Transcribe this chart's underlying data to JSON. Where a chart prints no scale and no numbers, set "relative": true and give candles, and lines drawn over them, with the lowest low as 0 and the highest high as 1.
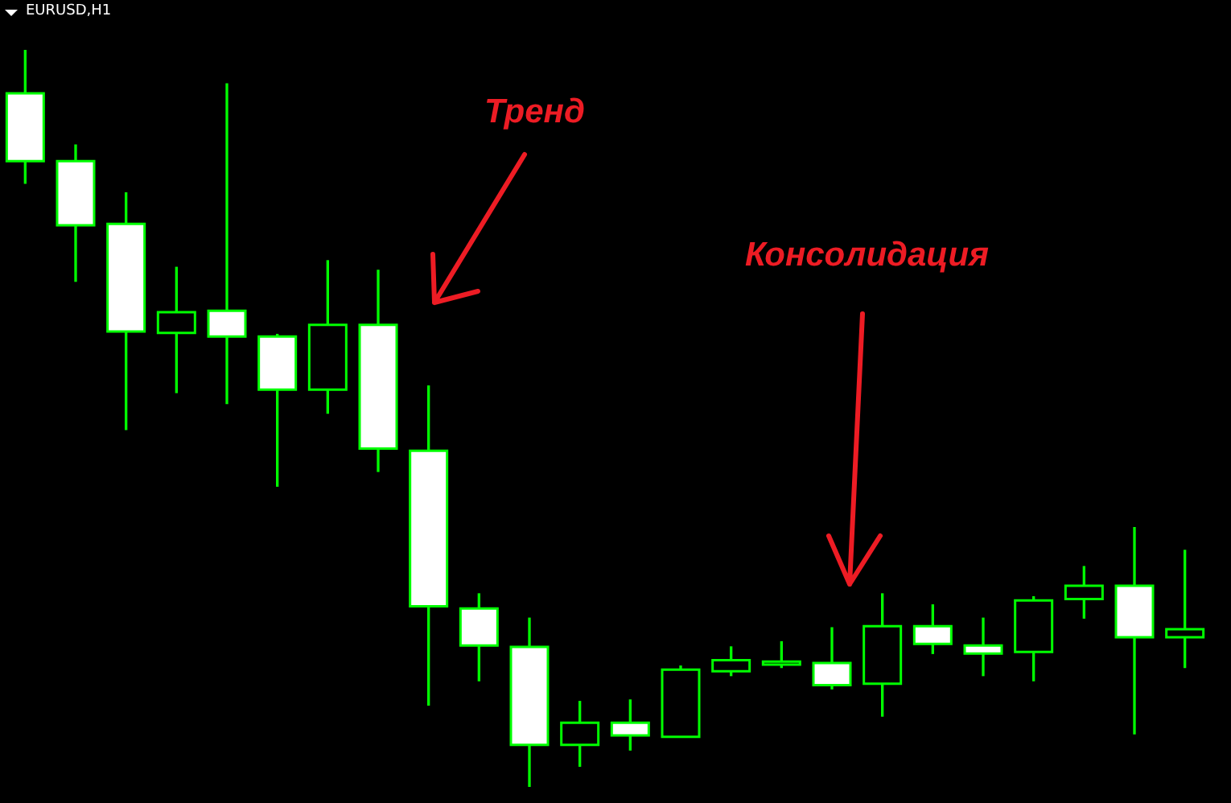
{
  "chart_data": {
    "type": "candlestick",
    "title": "EURUSD,H1",
    "relative": true,
    "categories": [
      null,
      null,
      null,
      null,
      null,
      null,
      null,
      null,
      null,
      null,
      null,
      null,
      null,
      null,
      null,
      null,
      null,
      null,
      null,
      null,
      null,
      null,
      null,
      null
    ],
    "ohlc": [
      [
        0.941,
        1,
        0.819,
        0.849
      ],
      [
        0.849,
        0.871,
        0.686,
        0.762
      ],
      [
        0.764,
        0.806,
        0.485,
        0.618
      ],
      [
        0.616,
        0.705,
        0.535,
        0.644
      ],
      [
        0.646,
        0.954,
        0.52,
        0.611
      ],
      [
        0.611,
        0.614,
        0.408,
        0.539
      ],
      [
        0.539,
        0.714,
        0.507,
        0.627
      ],
      [
        0.627,
        0.701,
        0.428,
        0.459
      ],
      [
        0.456,
        0.544,
        0.111,
        0.245
      ],
      [
        0.242,
        0.262,
        0.144,
        0.192
      ],
      [
        0.19,
        0.229,
        0,
        0.057
      ],
      [
        0.057,
        0.116,
        0.028,
        0.087
      ],
      [
        0.087,
        0.118,
        0.05,
        0.07
      ],
      [
        0.068,
        0.164,
        0.068,
        0.159
      ],
      [
        0.157,
        0.19,
        0.151,
        0.172
      ],
      [
        0.166,
        0.197,
        0.162,
        0.17
      ],
      [
        0.168,
        0.216,
        0.133,
        0.138
      ],
      [
        0.14,
        0.262,
        0.096,
        0.218
      ],
      [
        0.218,
        0.247,
        0.181,
        0.194
      ],
      [
        0.192,
        0.229,
        0.151,
        0.181
      ],
      [
        0.183,
        0.258,
        0.144,
        0.253
      ],
      [
        0.255,
        0.299,
        0.229,
        0.273
      ],
      [
        0.273,
        0.352,
        0.072,
        0.203
      ],
      [
        0.203,
        0.321,
        0.162,
        0.214
      ]
    ],
    "color": "#00ff00",
    "colors": [
      "#ffffff",
      "#ffffff",
      "#ffffff",
      "#000000",
      "#ffffff",
      "#ffffff",
      "#000000",
      "#ffffff",
      "#ffffff",
      "#ffffff",
      "#ffffff",
      "#000000",
      "#ffffff",
      "#000000",
      "#000000",
      "#000000",
      "#ffffff",
      "#000000",
      "#ffffff",
      "#ffffff",
      "#000000",
      "#000000",
      "#ffffff",
      "#000000"
    ],
    "annotations": [
      "Тренд",
      "Консолидация"
    ]
  }
}
